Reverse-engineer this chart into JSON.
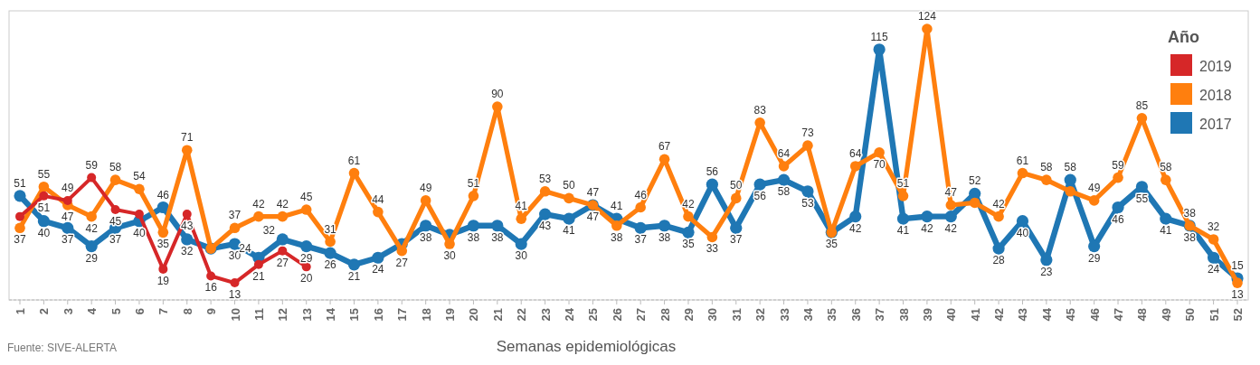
{
  "chart_data": {
    "type": "line",
    "xlabel": "Semanas epidemiológicas",
    "legend_title": "Año",
    "legend": "top right",
    "marker": "circle",
    "tick_labels": "x",
    "annotations": [
      "Fuente: SIVE-ALERTA"
    ],
    "categories": [
      "1",
      "2",
      "3",
      "4",
      "5",
      "6",
      "7",
      "8",
      "9",
      "10",
      "11",
      "12",
      "13",
      "14",
      "15",
      "16",
      "17",
      "18",
      "19",
      "20",
      "21",
      "22",
      "23",
      "24",
      "25",
      "26",
      "27",
      "28",
      "29",
      "30",
      "31",
      "32",
      "33",
      "34",
      "35",
      "36",
      "37",
      "38",
      "39",
      "40",
      "41",
      "42",
      "43",
      "44",
      "45",
      "46",
      "47",
      "48",
      "49",
      "50",
      "51",
      "52"
    ],
    "series": [
      {
        "name": "2019",
        "color": "#d62728",
        "values": [
          42,
          51,
          49,
          59,
          45,
          43,
          19,
          43,
          16,
          13,
          21,
          27,
          20,
          null,
          null,
          null,
          null,
          null,
          null,
          null,
          null,
          null,
          null,
          null,
          null,
          null,
          null,
          null,
          null,
          null,
          null,
          null,
          null,
          null,
          null,
          null,
          null,
          null,
          null,
          null,
          null,
          null,
          null,
          null,
          null,
          null,
          null,
          null,
          null,
          null,
          null,
          null
        ],
        "value_labels": [
          null,
          "51",
          "49",
          "59",
          "45",
          null,
          "19",
          "43",
          "16",
          "13",
          "21",
          "27",
          "20",
          null,
          null,
          null,
          null,
          null,
          null,
          null,
          null,
          null,
          null,
          null,
          null,
          null,
          null,
          null,
          null,
          null,
          null,
          null,
          null,
          null,
          null,
          null,
          null,
          null,
          null,
          null,
          null,
          null,
          null,
          null,
          null,
          null,
          null,
          null,
          null,
          null,
          null,
          null
        ]
      },
      {
        "name": "2018",
        "color": "#ff7f0e",
        "values": [
          37,
          55,
          47,
          42,
          58,
          54,
          35,
          71,
          28,
          37,
          42,
          42,
          45,
          31,
          61,
          44,
          27,
          49,
          30,
          51,
          90,
          41,
          53,
          50,
          47,
          38,
          46,
          67,
          42,
          33,
          50,
          83,
          64,
          73,
          35,
          64,
          70,
          51,
          124,
          47,
          48,
          42,
          61,
          58,
          53,
          49,
          59,
          85,
          58,
          38,
          32,
          13
        ],
        "value_labels": [
          "37",
          "55",
          "47",
          "42",
          "58",
          "54",
          "35",
          "71",
          null,
          "37",
          "42",
          "42",
          "45",
          "31",
          "61",
          "44",
          "27",
          "49",
          "30",
          "51",
          "90",
          "41",
          "53",
          "50",
          "47",
          "38",
          "46",
          "67",
          "42",
          "33",
          "50",
          "83",
          "64",
          "73",
          null,
          "64",
          "70",
          "51",
          "124",
          "47",
          null,
          "42",
          "61",
          "58",
          null,
          "49",
          "59",
          "85",
          "58",
          "38",
          "32",
          "13"
        ]
      },
      {
        "name": "2017",
        "color": "#1f77b4",
        "values": [
          51,
          40,
          37,
          29,
          37,
          40,
          46,
          32,
          28,
          30,
          24,
          32,
          29,
          26,
          21,
          24,
          30,
          38,
          34,
          38,
          38,
          30,
          43,
          41,
          47,
          41,
          37,
          38,
          35,
          56,
          37,
          56,
          58,
          53,
          35,
          42,
          115,
          41,
          42,
          42,
          52,
          28,
          40,
          23,
          58,
          29,
          46,
          55,
          41,
          38,
          24,
          15
        ],
        "value_labels": [
          "51",
          "40",
          "37",
          "29",
          "37",
          "40",
          "46",
          "32",
          null,
          "30",
          "24",
          "32",
          "29",
          "26",
          "21",
          "24",
          null,
          "38",
          null,
          "38",
          "38",
          "30",
          "43",
          "41",
          "47",
          "41",
          "37",
          "38",
          "35",
          "56",
          "37",
          "56",
          "58",
          "53",
          "35",
          "42",
          "115",
          "41",
          "42",
          "42",
          "52",
          "28",
          "40",
          "23",
          "58",
          "29",
          "46",
          "55",
          "41",
          "38",
          "24",
          "15"
        ]
      }
    ]
  }
}
